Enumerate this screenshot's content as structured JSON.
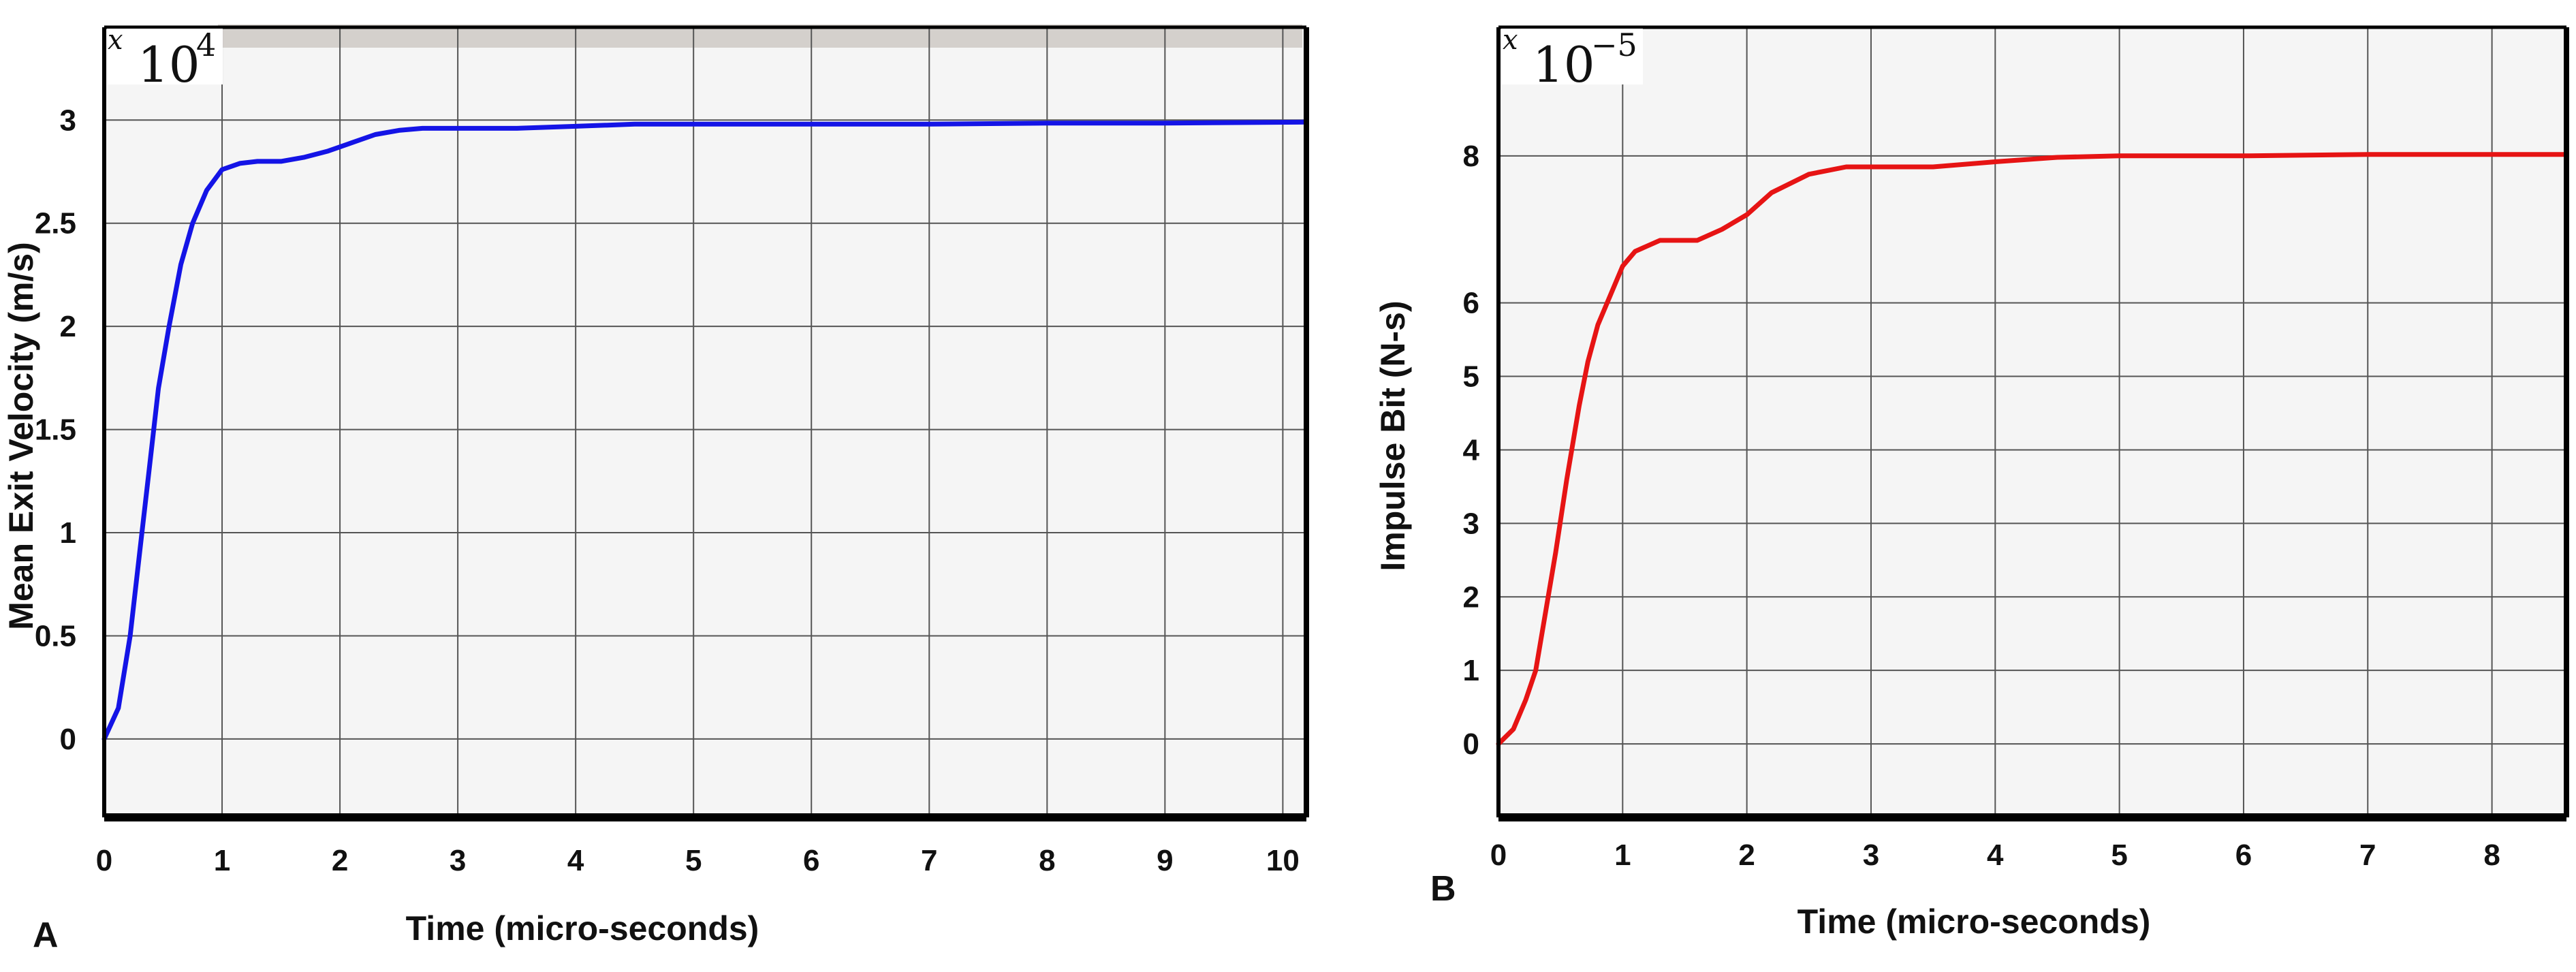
{
  "chart_data": [
    {
      "type": "line",
      "panel_label": "A",
      "xlabel": "Time (micro-seconds)",
      "ylabel": "Mean Exit Velocity (m/s)",
      "y_multiplier": {
        "base": "10",
        "exponent": "4",
        "prefix": "x"
      },
      "xlim": [
        0,
        10.2
      ],
      "ylim": [
        -0.38,
        3.45
      ],
      "x_ticks": [
        0,
        1,
        2,
        3,
        4,
        5,
        6,
        7,
        8,
        9,
        10
      ],
      "y_ticks": [
        0,
        0.5,
        1,
        1.5,
        2,
        2.5,
        3
      ],
      "grid": true,
      "line_color": "#1414e6",
      "series": [
        {
          "x": [
            0,
            0.12,
            0.22,
            0.3,
            0.38,
            0.46,
            0.55,
            0.65,
            0.75,
            0.87,
            1.0,
            1.15,
            1.3,
            1.5,
            1.7,
            1.9,
            2.1,
            2.3,
            2.5,
            2.7,
            3.0,
            3.5,
            4.0,
            4.5,
            5.0,
            6.0,
            7.0,
            8.0,
            9.0,
            10.2
          ],
          "y": [
            0,
            0.15,
            0.5,
            0.9,
            1.3,
            1.7,
            2.0,
            2.3,
            2.5,
            2.66,
            2.76,
            2.79,
            2.8,
            2.8,
            2.82,
            2.85,
            2.89,
            2.93,
            2.95,
            2.96,
            2.96,
            2.96,
            2.97,
            2.98,
            2.98,
            2.98,
            2.98,
            2.985,
            2.985,
            2.99
          ]
        }
      ]
    },
    {
      "type": "line",
      "panel_label": "B",
      "xlabel": "Time (micro-seconds)",
      "ylabel": "Impulse Bit (N-s)",
      "y_multiplier": {
        "base": "10",
        "exponent": "−5",
        "prefix": "x"
      },
      "xlim": [
        0,
        8.6
      ],
      "ylim": [
        -1.0,
        9.75
      ],
      "x_ticks": [
        0,
        1,
        2,
        3,
        4,
        5,
        6,
        7,
        8
      ],
      "y_ticks": [
        0,
        1,
        2,
        3,
        4,
        5,
        6,
        8
      ],
      "grid": true,
      "line_color": "#e61414",
      "series": [
        {
          "x": [
            0,
            0.12,
            0.22,
            0.3,
            0.38,
            0.46,
            0.55,
            0.65,
            0.72,
            0.8,
            0.9,
            1.0,
            1.1,
            1.3,
            1.6,
            1.8,
            2.0,
            2.2,
            2.5,
            2.8,
            3.0,
            3.5,
            4.0,
            4.5,
            5.0,
            6.0,
            7.0,
            8.6
          ],
          "y": [
            0,
            0.2,
            0.6,
            1.0,
            1.8,
            2.6,
            3.6,
            4.6,
            5.2,
            5.7,
            6.1,
            6.5,
            6.7,
            6.85,
            6.85,
            7.0,
            7.2,
            7.5,
            7.75,
            7.85,
            7.85,
            7.85,
            7.92,
            7.98,
            8.0,
            8.0,
            8.02,
            8.02
          ]
        }
      ]
    }
  ]
}
